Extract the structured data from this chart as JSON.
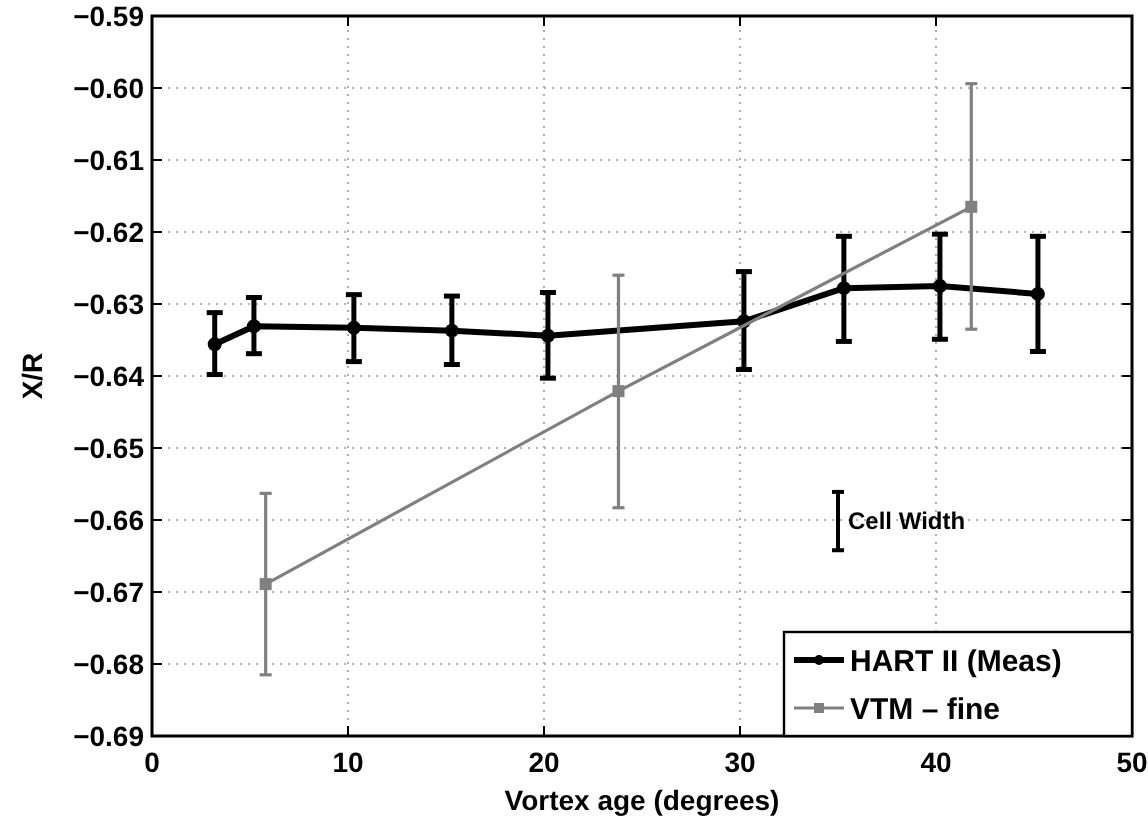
{
  "chart_data": {
    "type": "line",
    "xlabel": "Vortex age (degrees)",
    "ylabel": "X/R",
    "xlim": [
      0,
      50
    ],
    "xticks": [
      0,
      10,
      20,
      30,
      40,
      50
    ],
    "ylim": [
      -0.69,
      -0.59
    ],
    "yticks": [
      -0.69,
      -0.68,
      -0.67,
      -0.66,
      -0.65,
      -0.64,
      -0.63,
      -0.62,
      -0.61,
      {
        "value": -0.6,
        "label": "−0.60"
      },
      -0.59
    ],
    "grid": true,
    "legend": "bottom right",
    "annotations": [
      "Cell Width"
    ],
    "series": [
      {
        "name": "HART II (Meas)",
        "color": "#000000",
        "marker": "circle",
        "x": [
          3.2,
          5.2,
          10.3,
          15.3,
          20.2,
          30.2,
          35.3,
          40.2,
          45.2
        ],
        "values": [
          -0.6356,
          -0.6331,
          -0.6333,
          -0.6337,
          -0.6344,
          -0.6324,
          -0.6278,
          -0.6275,
          -0.6286
        ],
        "errors": [
          [
            -0.6398,
            -0.6312
          ],
          [
            -0.6369,
            -0.6291
          ],
          [
            -0.638,
            -0.6287
          ],
          [
            -0.6384,
            -0.6289
          ],
          [
            -0.6403,
            -0.6284
          ],
          [
            -0.6391,
            -0.6255
          ],
          [
            -0.6352,
            -0.6206
          ],
          [
            -0.6349,
            -0.6203
          ],
          [
            -0.6366,
            -0.6206
          ]
        ]
      },
      {
        "name": "VTM – fine",
        "color": "#808080",
        "marker": "square",
        "x": [
          5.8,
          23.8,
          41.8
        ],
        "values": [
          -0.6689,
          -0.6421,
          -0.6165
        ],
        "errors": [
          [
            -0.6815,
            -0.6563
          ],
          [
            -0.6583,
            -0.626
          ],
          [
            -0.6335,
            -0.5994
          ]
        ]
      }
    ]
  }
}
